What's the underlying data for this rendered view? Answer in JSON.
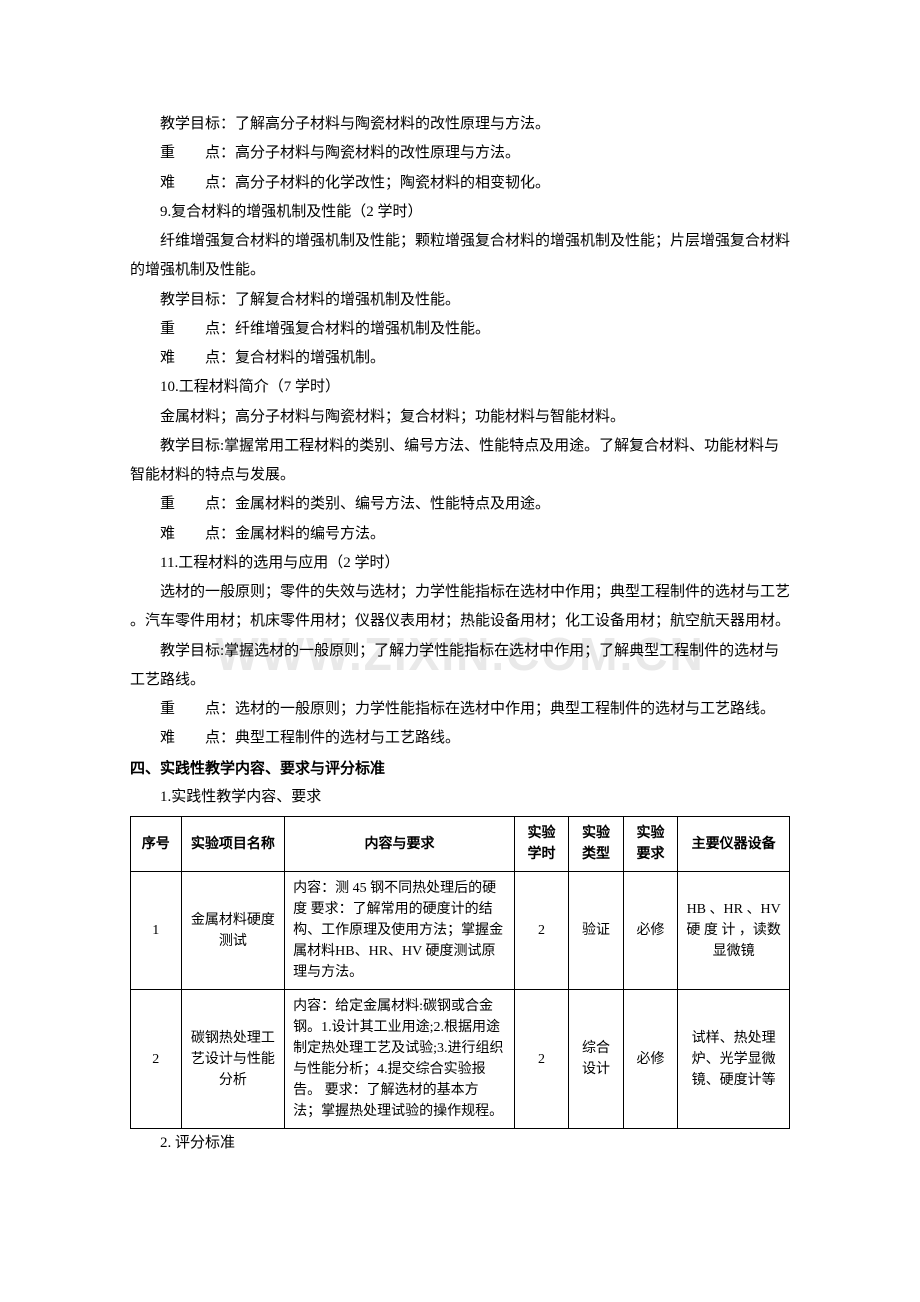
{
  "watermark": "WWW.ZIXIN.COM.CN",
  "paragraphs": {
    "p1": "教学目标：了解高分子材料与陶瓷材料的改性原理与方法。",
    "p2a": "重",
    "p2b": "点：高分子材料与陶瓷材料的改性原理与方法。",
    "p3a": "难",
    "p3b": "点：高分子材料的化学改性；陶瓷材料的相变韧化。",
    "p4": "9.复合材料的增强机制及性能（2 学时）",
    "p5": "纤维增强复合材料的增强机制及性能；颗粒增强复合材料的增强机制及性能；片层增强复合材料的增强机制及性能。",
    "p6": "教学目标：了解复合材料的增强机制及性能。",
    "p7a": "重",
    "p7b": "点：纤维增强复合材料的增强机制及性能。",
    "p8a": "难",
    "p8b": "点：复合材料的增强机制。",
    "p9": "10.工程材料简介（7 学时）",
    "p10": "金属材料；高分子材料与陶瓷材料；复合材料；功能材料与智能材料。",
    "p11": "教学目标:掌握常用工程材料的类别、编号方法、性能特点及用途。了解复合材料、功能材料与智能材料的特点与发展。",
    "p12a": "重",
    "p12b": "点：金属材料的类别、编号方法、性能特点及用途。",
    "p13a": "难",
    "p13b": "点：金属材料的编号方法。",
    "p14": "11.工程材料的选用与应用（2 学时）",
    "p15": "选材的一般原则；零件的失效与选材；力学性能指标在选材中作用；典型工程制件的选材与工艺 。汽车零件用材；机床零件用材；仪器仪表用材；热能设备用材；化工设备用材；航空航天器用材。",
    "p16": "教学目标:掌握选材的一般原则；了解力学性能指标在选材中作用；了解典型工程制件的选材与工艺路线。",
    "p17a": "重",
    "p17b": "点：选材的一般原则；力学性能指标在选材中作用；典型工程制件的选材与工艺路线。",
    "p18a": "难",
    "p18b": "点：典型工程制件的选材与工艺路线。"
  },
  "section4_title": "四、实践性教学内容、要求与评分标准",
  "section4_sub1": "1.实践性教学内容、要求",
  "section4_sub2": "2. 评分标准",
  "table": {
    "headers": {
      "no": "序号",
      "name": "实验项目名称",
      "content": "内容与要求",
      "hours": "实验学时",
      "type": "实验类型",
      "req": "实验要求",
      "equip": "主要仪器设备"
    },
    "rows": [
      {
        "no": "1",
        "name": "金属材料硬度测试",
        "content": "内容：测 45 钢不同热处理后的硬度\n要求：了解常用的硬度计的结构、工作原理及使用方法；掌握金属材料HB、HR、HV 硬度测试原理与方法。",
        "hours": "2",
        "type": "验证",
        "req": "必修",
        "equip": "HB 、HR 、HV 硬 度 计 ，读数显微镜"
      },
      {
        "no": "2",
        "name": "碳钢热处理工艺设计与性能分析",
        "content": "内容：给定金属材料:碳钢或合金钢。1.设计其工业用途;2.根据用途制定热处理工艺及试验;3.进行组织与性能分析；4.提交综合实验报告。\n要求：了解选材的基本方法；掌握热处理试验的操作规程。",
        "hours": "2",
        "type": "综合设计",
        "req": "必修",
        "equip": "试样、热处理炉、光学显微镜、硬度计等"
      }
    ]
  }
}
